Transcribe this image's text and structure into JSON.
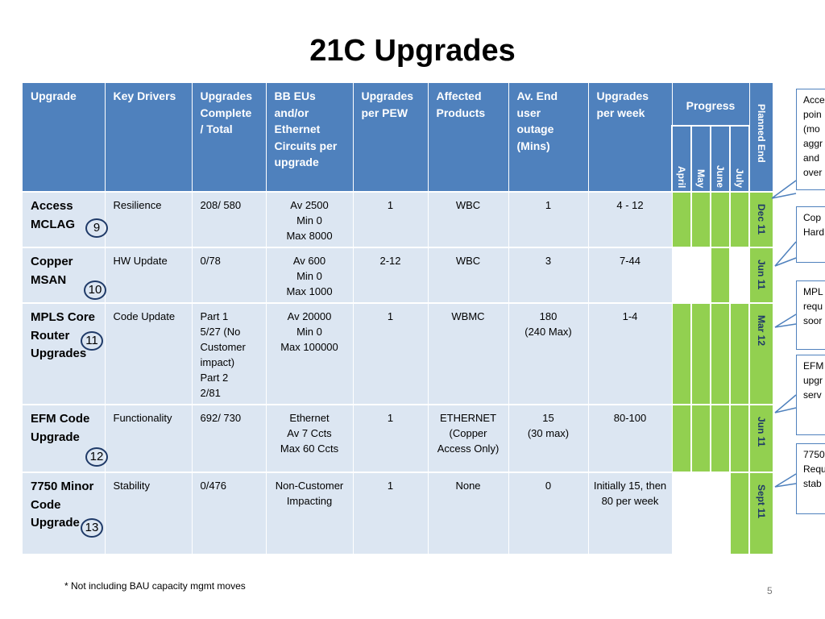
{
  "title": "21C Upgrades",
  "table": {
    "headers": {
      "upgrade": "Upgrade",
      "key_drivers": "Key Drivers",
      "complete_total": "Upgrades Complete / Total",
      "bb_eus": "BB EUs and/or Ethernet Circuits per upgrade",
      "per_pew": "Upgrades per PEW",
      "affected": "Affected Products",
      "outage": "Av. End user outage (Mins)",
      "per_week": "Upgrades per week",
      "progress": "Progress",
      "months": [
        "April",
        "May",
        "June",
        "July"
      ],
      "planned_end": "Planned End"
    },
    "rows": [
      {
        "name": "Access MCLAG",
        "badge": "9",
        "driver": "Resilience",
        "complete": "208/ 580",
        "bb": "Av 2500\nMin 0\nMax 8000",
        "pew": "1",
        "products": "WBC",
        "outage": "1",
        "per_week": "4 - 12",
        "progress": [
          1,
          1,
          1,
          1
        ],
        "planned": "Dec 11"
      },
      {
        "name": "Copper MSAN",
        "badge": "10",
        "driver": "HW Update",
        "complete": "0/78",
        "bb": "Av 600\nMin 0\nMax 1000",
        "pew": "2-12",
        "products": "WBC",
        "outage": "3",
        "per_week": "7-44",
        "progress": [
          0,
          0,
          1,
          0
        ],
        "planned": "Jun 11"
      },
      {
        "name": "MPLS Core Router Upgrades",
        "badge": "11",
        "driver": "Code Update",
        "complete": "Part 1\n5/27 (No Customer impact)\nPart 2\n2/81",
        "bb": "Av 20000\nMin 0\nMax 100000",
        "pew": "1",
        "products": "WBMC",
        "outage": "180\n(240 Max)",
        "per_week": "1-4",
        "progress": [
          1,
          1,
          1,
          1
        ],
        "planned": "Mar 12"
      },
      {
        "name": "EFM  Code Upgrade",
        "badge": "12",
        "driver": "Functionality",
        "complete": "692/ 730",
        "bb": "Ethernet\nAv 7 Ccts\nMax 60 Ccts",
        "pew": "1",
        "products": "ETHERNET (Copper Access Only)",
        "outage": "15\n(30 max)",
        "per_week": "80-100",
        "progress": [
          1,
          1,
          1,
          1
        ],
        "planned": "Jun 11"
      },
      {
        "name": "7750 Minor Code Upgrade",
        "badge": "13",
        "driver": "Stability",
        "complete": "0/476",
        "bb": "Non-Customer Impacting",
        "pew": "1",
        "products": "None",
        "outage": "0",
        "per_week": "Initially 15, then 80 per week",
        "progress": [
          0,
          0,
          0,
          1
        ],
        "planned": "Sept 11"
      }
    ]
  },
  "callouts": [
    "Acce\npoin\n(mo\naggr\nand\nover",
    "Cop\nHard",
    "MPL\nrequ\nsoor",
    "EFM\nupgr\nserv",
    "7750\nRequ\nstab"
  ],
  "footnote": "* Not including BAU capacity mgmt moves",
  "page_number": "5",
  "colors": {
    "header_blue": "#4f81bd",
    "cell_blue": "#dce6f2",
    "progress_green": "#92d050",
    "badge_navy": "#1f3a68"
  }
}
